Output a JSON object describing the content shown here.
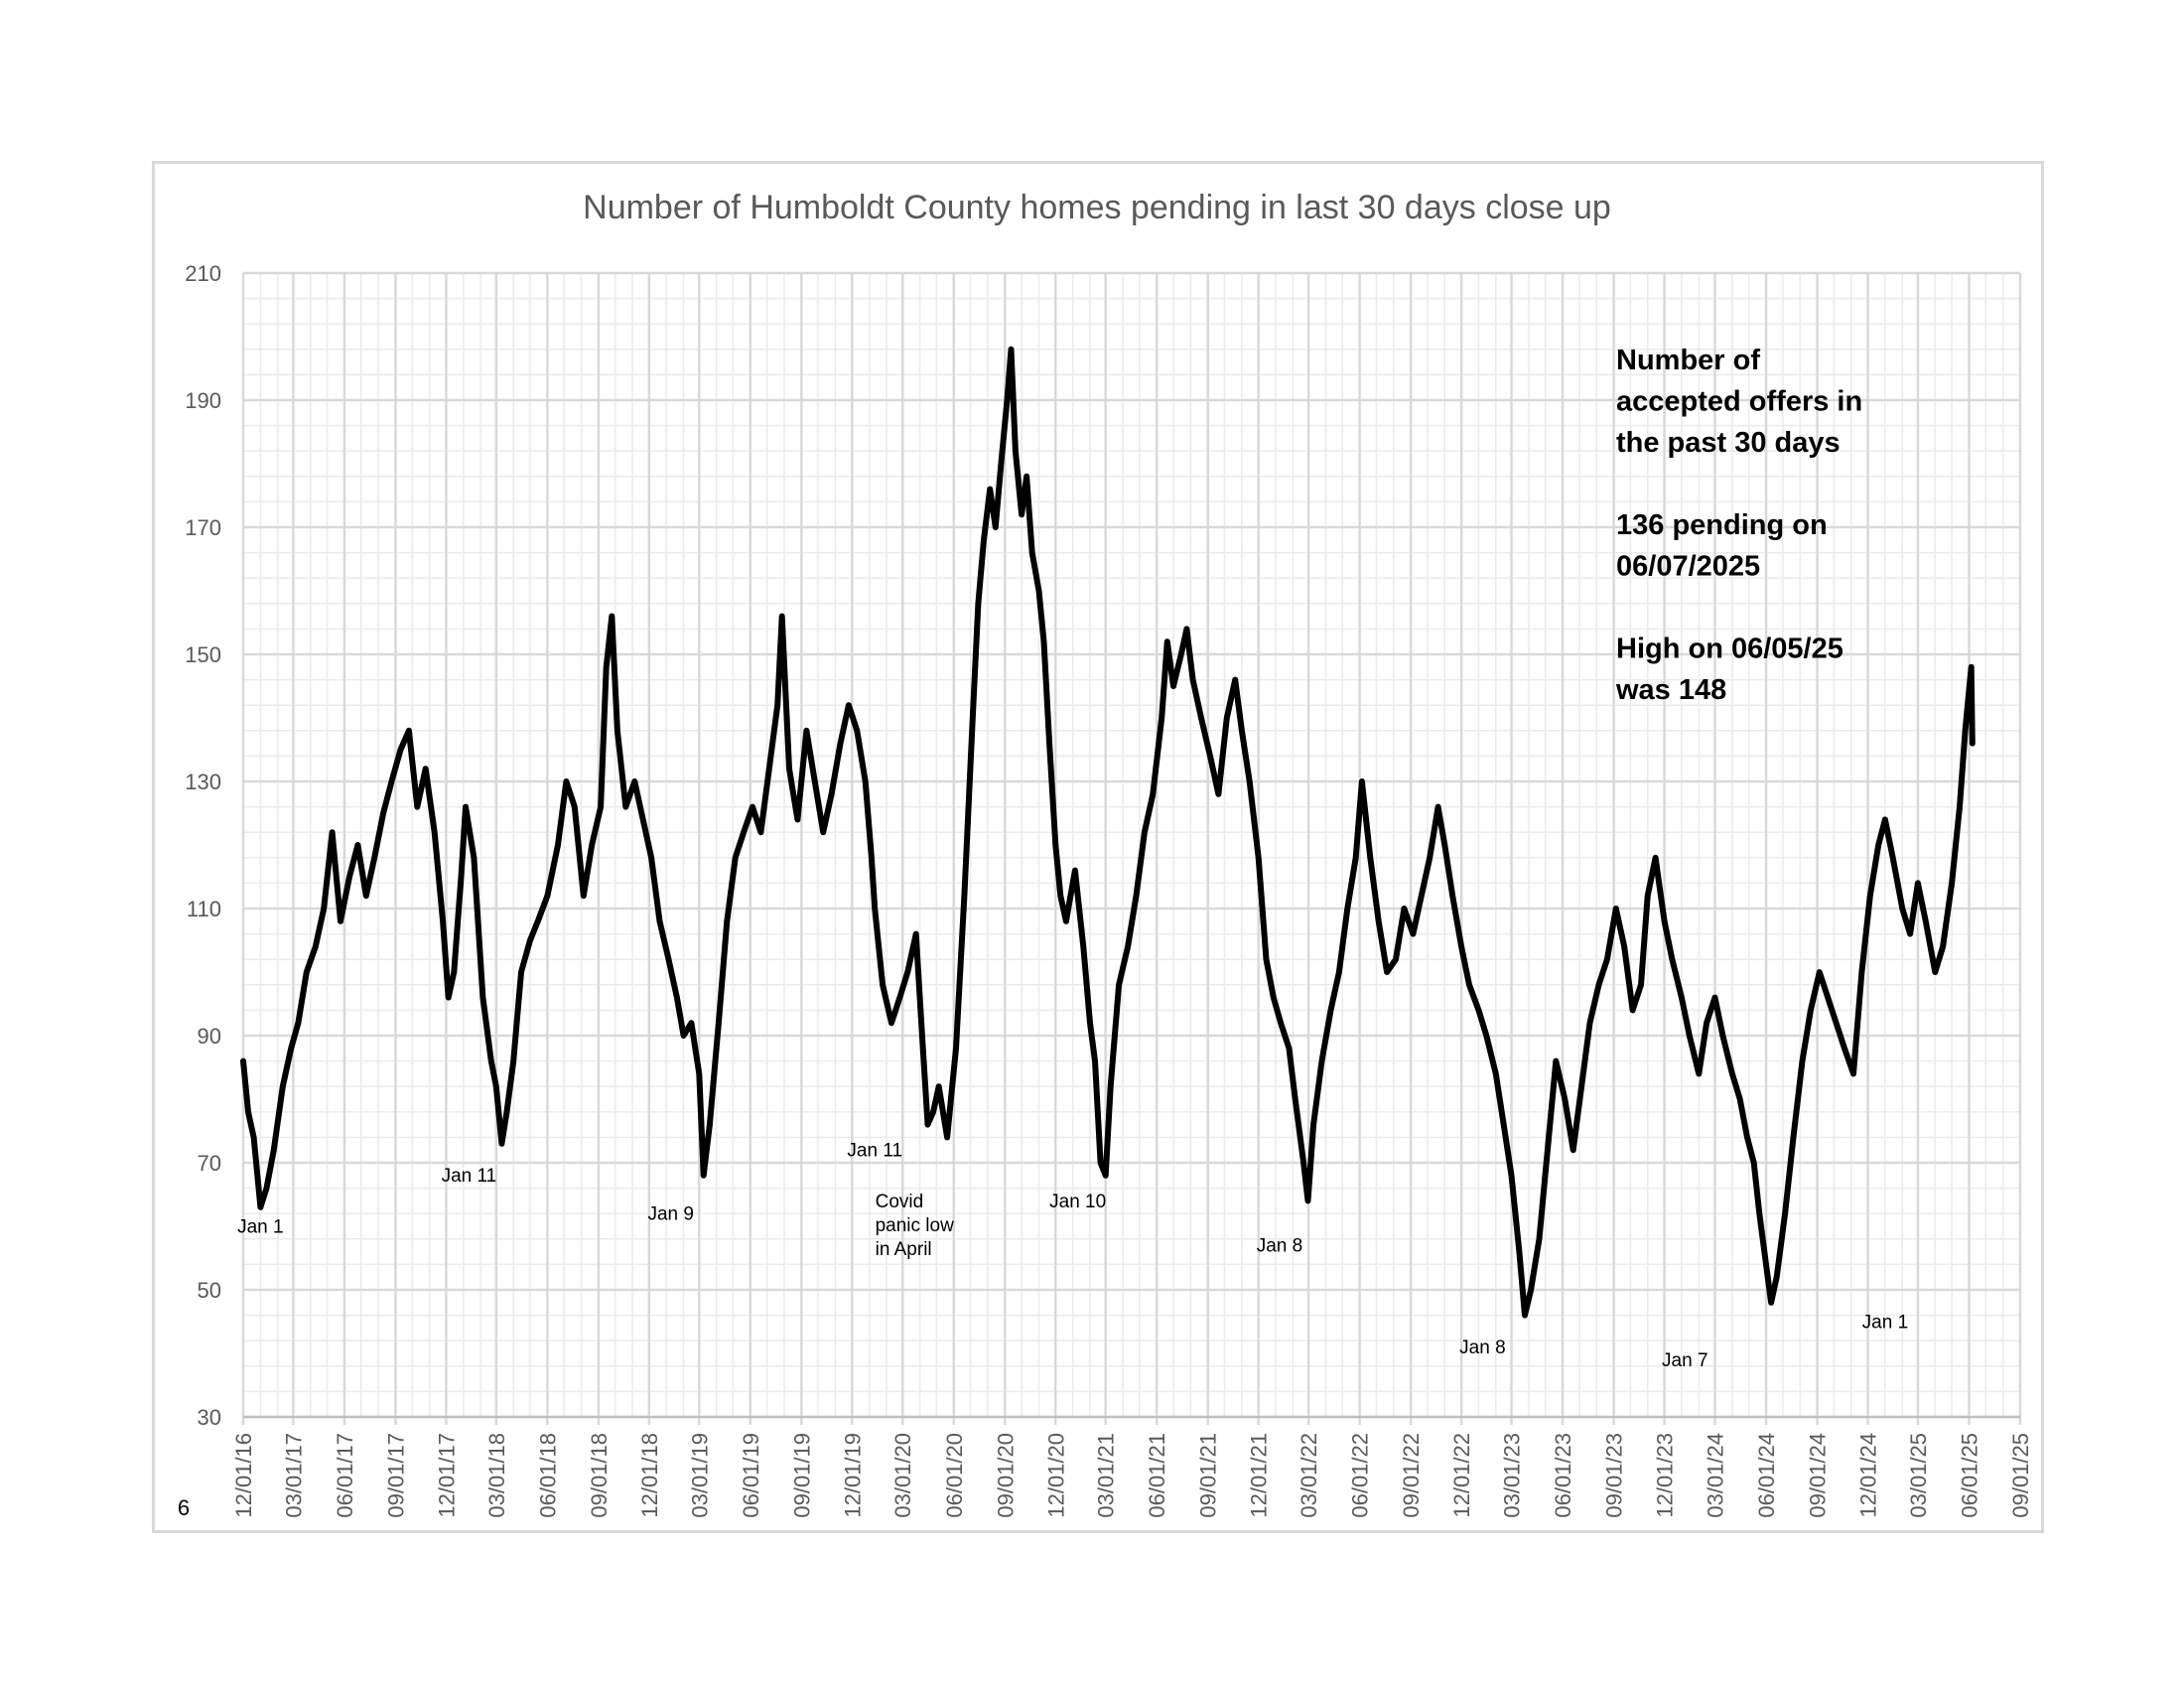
{
  "page_number": "6",
  "chart_data": {
    "type": "line",
    "title": "Number of Humboldt County homes pending in last 30 days close up",
    "xlabel": "",
    "ylabel": "",
    "ylim": [
      30,
      210
    ],
    "y_ticks": [
      30,
      50,
      70,
      90,
      110,
      130,
      150,
      170,
      190,
      210
    ],
    "x_range": [
      "2016-12-01",
      "2025-09-01"
    ],
    "x_tick_labels": [
      "12/01/16",
      "03/01/17",
      "06/01/17",
      "09/01/17",
      "12/01/17",
      "03/01/18",
      "06/01/18",
      "09/01/18",
      "12/01/18",
      "03/01/19",
      "06/01/19",
      "09/01/19",
      "12/01/19",
      "03/01/20",
      "06/01/20",
      "09/01/20",
      "12/01/20",
      "03/01/21",
      "06/01/21",
      "09/01/21",
      "12/01/21",
      "03/01/22",
      "06/01/22",
      "09/01/22",
      "12/01/22",
      "03/01/23",
      "06/01/23",
      "09/01/23",
      "12/01/23",
      "03/01/24",
      "06/01/24",
      "09/01/24",
      "12/01/24",
      "03/01/25",
      "06/01/25",
      "09/01/25"
    ],
    "grid": true,
    "series": [
      {
        "color": "#000000",
        "points": [
          [
            "2016-12-01",
            86
          ],
          [
            "2016-12-10",
            78
          ],
          [
            "2016-12-20",
            74
          ],
          [
            "2017-01-01",
            63
          ],
          [
            "2017-01-12",
            66
          ],
          [
            "2017-01-25",
            72
          ],
          [
            "2017-02-10",
            82
          ],
          [
            "2017-02-25",
            88
          ],
          [
            "2017-03-10",
            92
          ],
          [
            "2017-03-25",
            100
          ],
          [
            "2017-04-10",
            104
          ],
          [
            "2017-04-25",
            110
          ],
          [
            "2017-05-10",
            122
          ],
          [
            "2017-05-25",
            108
          ],
          [
            "2017-06-10",
            115
          ],
          [
            "2017-06-25",
            120
          ],
          [
            "2017-07-10",
            112
          ],
          [
            "2017-07-25",
            118
          ],
          [
            "2017-08-10",
            125
          ],
          [
            "2017-08-25",
            130
          ],
          [
            "2017-09-10",
            135
          ],
          [
            "2017-09-25",
            138
          ],
          [
            "2017-10-10",
            126
          ],
          [
            "2017-10-25",
            132
          ],
          [
            "2017-11-10",
            122
          ],
          [
            "2017-11-25",
            108
          ],
          [
            "2017-12-05",
            96
          ],
          [
            "2017-12-15",
            100
          ],
          [
            "2017-12-28",
            115
          ],
          [
            "2018-01-05",
            126
          ],
          [
            "2018-01-20",
            118
          ],
          [
            "2018-02-05",
            96
          ],
          [
            "2018-02-20",
            86
          ],
          [
            "2018-03-01",
            82
          ],
          [
            "2018-03-11",
            73
          ],
          [
            "2018-03-20",
            78
          ],
          [
            "2018-04-01",
            86
          ],
          [
            "2018-04-15",
            100
          ],
          [
            "2018-05-01",
            105
          ],
          [
            "2018-05-15",
            108
          ],
          [
            "2018-06-01",
            112
          ],
          [
            "2018-06-20",
            120
          ],
          [
            "2018-07-05",
            130
          ],
          [
            "2018-07-20",
            126
          ],
          [
            "2018-08-05",
            112
          ],
          [
            "2018-08-20",
            120
          ],
          [
            "2018-09-05",
            126
          ],
          [
            "2018-09-15",
            148
          ],
          [
            "2018-09-25",
            156
          ],
          [
            "2018-10-05",
            138
          ],
          [
            "2018-10-20",
            126
          ],
          [
            "2018-11-05",
            130
          ],
          [
            "2018-11-20",
            124
          ],
          [
            "2018-12-05",
            118
          ],
          [
            "2018-12-20",
            108
          ],
          [
            "2019-01-05",
            102
          ],
          [
            "2019-01-20",
            96
          ],
          [
            "2019-02-01",
            90
          ],
          [
            "2019-02-15",
            92
          ],
          [
            "2019-03-01",
            84
          ],
          [
            "2019-03-09",
            68
          ],
          [
            "2019-03-20",
            76
          ],
          [
            "2019-04-05",
            92
          ],
          [
            "2019-04-20",
            108
          ],
          [
            "2019-05-05",
            118
          ],
          [
            "2019-05-20",
            122
          ],
          [
            "2019-06-05",
            126
          ],
          [
            "2019-06-20",
            122
          ],
          [
            "2019-07-05",
            132
          ],
          [
            "2019-07-20",
            142
          ],
          [
            "2019-07-28",
            156
          ],
          [
            "2019-08-10",
            132
          ],
          [
            "2019-08-25",
            124
          ],
          [
            "2019-09-10",
            138
          ],
          [
            "2019-09-25",
            130
          ],
          [
            "2019-10-10",
            122
          ],
          [
            "2019-10-25",
            128
          ],
          [
            "2019-11-10",
            136
          ],
          [
            "2019-11-25",
            142
          ],
          [
            "2019-12-10",
            138
          ],
          [
            "2019-12-25",
            130
          ],
          [
            "2020-01-05",
            118
          ],
          [
            "2020-01-11",
            110
          ],
          [
            "2020-01-25",
            98
          ],
          [
            "2020-02-10",
            92
          ],
          [
            "2020-02-25",
            96
          ],
          [
            "2020-03-10",
            100
          ],
          [
            "2020-03-25",
            106
          ],
          [
            "2020-04-05",
            90
          ],
          [
            "2020-04-15",
            76
          ],
          [
            "2020-04-25",
            78
          ],
          [
            "2020-05-05",
            82
          ],
          [
            "2020-05-20",
            74
          ],
          [
            "2020-06-05",
            88
          ],
          [
            "2020-06-20",
            112
          ],
          [
            "2020-07-05",
            140
          ],
          [
            "2020-07-15",
            158
          ],
          [
            "2020-07-25",
            168
          ],
          [
            "2020-08-05",
            176
          ],
          [
            "2020-08-15",
            170
          ],
          [
            "2020-08-25",
            180
          ],
          [
            "2020-09-05",
            190
          ],
          [
            "2020-09-12",
            198
          ],
          [
            "2020-09-20",
            182
          ],
          [
            "2020-10-01",
            172
          ],
          [
            "2020-10-10",
            178
          ],
          [
            "2020-10-20",
            166
          ],
          [
            "2020-11-01",
            160
          ],
          [
            "2020-11-10",
            152
          ],
          [
            "2020-11-20",
            136
          ],
          [
            "2020-12-01",
            120
          ],
          [
            "2020-12-10",
            112
          ],
          [
            "2020-12-20",
            108
          ],
          [
            "2021-01-05",
            116
          ],
          [
            "2021-01-20",
            104
          ],
          [
            "2021-02-01",
            92
          ],
          [
            "2021-02-10",
            86
          ],
          [
            "2021-02-20",
            70
          ],
          [
            "2021-03-01",
            68
          ],
          [
            "2021-03-10",
            82
          ],
          [
            "2021-03-25",
            98
          ],
          [
            "2021-04-10",
            104
          ],
          [
            "2021-04-25",
            112
          ],
          [
            "2021-05-10",
            122
          ],
          [
            "2021-05-25",
            128
          ],
          [
            "2021-06-10",
            140
          ],
          [
            "2021-06-20",
            152
          ],
          [
            "2021-07-01",
            145
          ],
          [
            "2021-07-15",
            150
          ],
          [
            "2021-07-25",
            154
          ],
          [
            "2021-08-05",
            146
          ],
          [
            "2021-08-20",
            140
          ],
          [
            "2021-09-05",
            134
          ],
          [
            "2021-09-20",
            128
          ],
          [
            "2021-10-05",
            140
          ],
          [
            "2021-10-20",
            146
          ],
          [
            "2021-11-01",
            138
          ],
          [
            "2021-11-15",
            130
          ],
          [
            "2021-12-01",
            118
          ],
          [
            "2021-12-15",
            102
          ],
          [
            "2021-12-28",
            96
          ],
          [
            "2022-01-10",
            92
          ],
          [
            "2022-01-25",
            88
          ],
          [
            "2022-02-05",
            80
          ],
          [
            "2022-02-20",
            70
          ],
          [
            "2022-02-28",
            64
          ],
          [
            "2022-03-10",
            76
          ],
          [
            "2022-03-25",
            86
          ],
          [
            "2022-04-10",
            94
          ],
          [
            "2022-04-25",
            100
          ],
          [
            "2022-05-10",
            110
          ],
          [
            "2022-05-25",
            118
          ],
          [
            "2022-06-05",
            130
          ],
          [
            "2022-06-20",
            118
          ],
          [
            "2022-07-05",
            108
          ],
          [
            "2022-07-20",
            100
          ],
          [
            "2022-08-05",
            102
          ],
          [
            "2022-08-20",
            110
          ],
          [
            "2022-09-05",
            106
          ],
          [
            "2022-09-20",
            112
          ],
          [
            "2022-10-05",
            118
          ],
          [
            "2022-10-20",
            126
          ],
          [
            "2022-11-01",
            120
          ],
          [
            "2022-11-15",
            112
          ],
          [
            "2022-12-01",
            104
          ],
          [
            "2022-12-15",
            98
          ],
          [
            "2023-01-01",
            94
          ],
          [
            "2023-01-15",
            90
          ],
          [
            "2023-02-01",
            84
          ],
          [
            "2023-02-15",
            76
          ],
          [
            "2023-03-01",
            68
          ],
          [
            "2023-03-15",
            56
          ],
          [
            "2023-03-25",
            46
          ],
          [
            "2023-04-05",
            50
          ],
          [
            "2023-04-20",
            58
          ],
          [
            "2023-05-05",
            72
          ],
          [
            "2023-05-20",
            86
          ],
          [
            "2023-06-05",
            80
          ],
          [
            "2023-06-20",
            72
          ],
          [
            "2023-07-05",
            82
          ],
          [
            "2023-07-20",
            92
          ],
          [
            "2023-08-05",
            98
          ],
          [
            "2023-08-20",
            102
          ],
          [
            "2023-09-05",
            110
          ],
          [
            "2023-09-20",
            104
          ],
          [
            "2023-10-05",
            94
          ],
          [
            "2023-10-20",
            98
          ],
          [
            "2023-11-01",
            112
          ],
          [
            "2023-11-15",
            118
          ],
          [
            "2023-12-01",
            108
          ],
          [
            "2023-12-15",
            102
          ],
          [
            "2024-01-01",
            96
          ],
          [
            "2024-01-15",
            90
          ],
          [
            "2024-02-01",
            84
          ],
          [
            "2024-02-15",
            92
          ],
          [
            "2024-03-01",
            96
          ],
          [
            "2024-03-15",
            90
          ],
          [
            "2024-04-01",
            84
          ],
          [
            "2024-04-15",
            80
          ],
          [
            "2024-04-28",
            74
          ],
          [
            "2024-05-10",
            70
          ],
          [
            "2024-05-20",
            62
          ],
          [
            "2024-06-01",
            54
          ],
          [
            "2024-06-10",
            48
          ],
          [
            "2024-06-20",
            52
          ],
          [
            "2024-07-05",
            62
          ],
          [
            "2024-07-20",
            74
          ],
          [
            "2024-08-05",
            86
          ],
          [
            "2024-08-20",
            94
          ],
          [
            "2024-09-05",
            100
          ],
          [
            "2024-09-20",
            96
          ],
          [
            "2024-10-05",
            92
          ],
          [
            "2024-10-20",
            88
          ],
          [
            "2024-11-05",
            84
          ],
          [
            "2024-11-20",
            100
          ],
          [
            "2024-12-05",
            112
          ],
          [
            "2024-12-20",
            120
          ],
          [
            "2025-01-01",
            124
          ],
          [
            "2025-01-15",
            118
          ],
          [
            "2025-02-01",
            110
          ],
          [
            "2025-02-15",
            106
          ],
          [
            "2025-03-01",
            114
          ],
          [
            "2025-03-15",
            108
          ],
          [
            "2025-04-01",
            100
          ],
          [
            "2025-04-15",
            104
          ],
          [
            "2025-05-01",
            114
          ],
          [
            "2025-05-15",
            126
          ],
          [
            "2025-05-25",
            138
          ],
          [
            "2025-06-05",
            148
          ],
          [
            "2025-06-07",
            136
          ]
        ]
      }
    ],
    "annotations": [
      {
        "lines": [
          "Jan 1"
        ],
        "date": "2017-01-01",
        "value": 59
      },
      {
        "lines": [
          "Jan 11"
        ],
        "date": "2018-01-11",
        "value": 67
      },
      {
        "lines": [
          "Jan 9"
        ],
        "date": "2019-01-09",
        "value": 61
      },
      {
        "lines": [
          "Jan 11"
        ],
        "date": "2020-01-11",
        "value": 71
      },
      {
        "lines": [
          "Covid",
          "panic low",
          "in April"
        ],
        "date": "2020-04-01",
        "value": 63
      },
      {
        "lines": [
          "Jan 10"
        ],
        "date": "2021-01-10",
        "value": 63
      },
      {
        "lines": [
          "Jan 8"
        ],
        "date": "2022-01-08",
        "value": 56
      },
      {
        "lines": [
          "Jan 8"
        ],
        "date": "2023-01-08",
        "value": 40
      },
      {
        "lines": [
          "Jan 7"
        ],
        "date": "2024-01-07",
        "value": 38
      },
      {
        "lines": [
          "Jan 1"
        ],
        "date": "2025-01-01",
        "value": 44
      }
    ],
    "note_lines": [
      "Number of",
      "accepted offers in",
      "the past 30 days",
      "",
      "136 pending on",
      "06/07/2025",
      "",
      "High on 06/05/25",
      "was 148"
    ]
  }
}
